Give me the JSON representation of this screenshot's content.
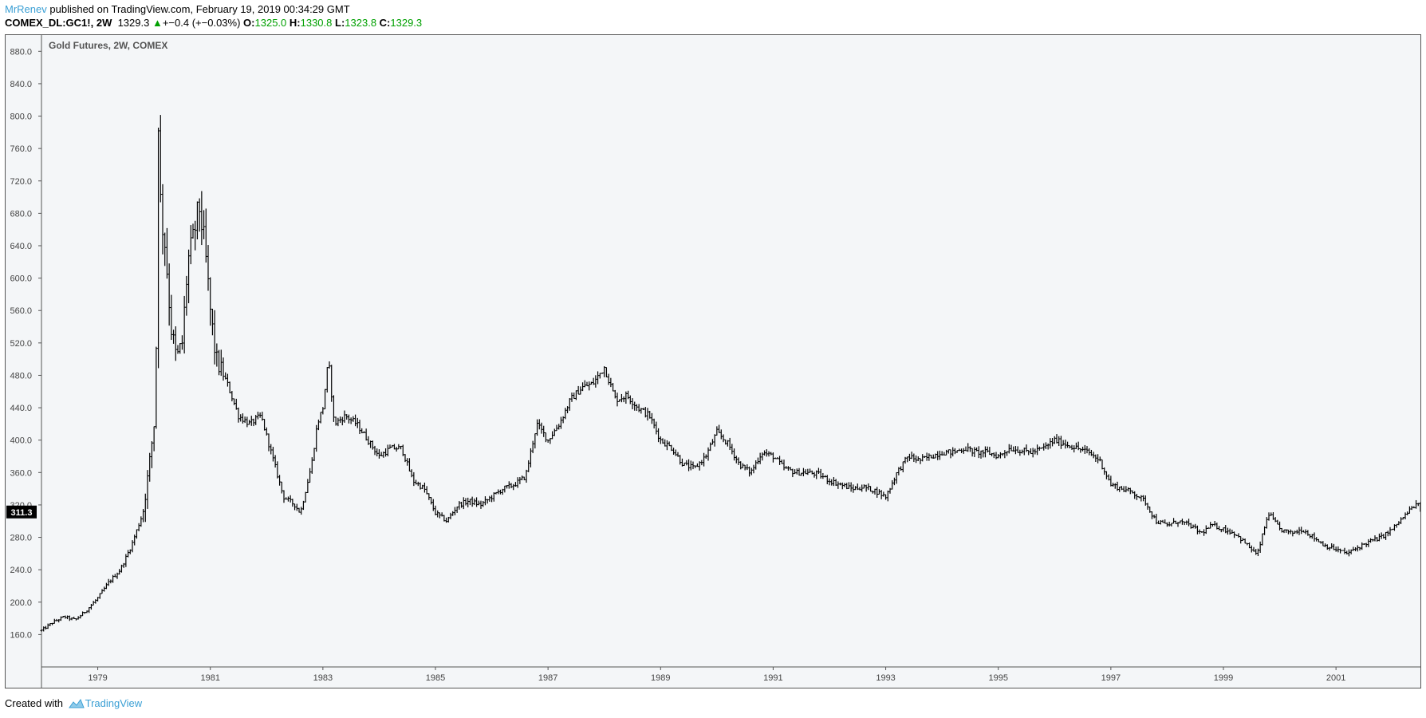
{
  "header": {
    "author": "MrRenev",
    "published_text": "published on TradingView.com, February 19, 2019 00:34:29 GMT",
    "symbol": "COMEX_DL:GC1!, 2W",
    "last": "1329.3",
    "change": "+−0.4 (+−0.03%)",
    "open_label": "O:",
    "open": "1325.0",
    "high_label": "H:",
    "high": "1330.8",
    "low_label": "L:",
    "low": "1323.8",
    "close_label": "C:",
    "close": "1329.3"
  },
  "footer": {
    "created_with": "Created with",
    "brand": "TradingView"
  },
  "colors": {
    "up": "#00a000",
    "accent": "#3a9fd4",
    "bars": "#000000",
    "background": "#f4f6f8"
  },
  "chart_data": {
    "type": "ohlc-bar",
    "title": "Gold Futures, 2W, COMEX",
    "price_label": "311.3",
    "ylim": [
      120,
      900
    ],
    "xlim": [
      1978.0,
      2002.5
    ],
    "y_ticks": [
      "160.0",
      "200.0",
      "240.0",
      "280.0",
      "320.0",
      "360.0",
      "400.0",
      "440.0",
      "480.0",
      "520.0",
      "560.0",
      "600.0",
      "640.0",
      "680.0",
      "720.0",
      "760.0",
      "800.0",
      "840.0",
      "880.0"
    ],
    "x_ticks": [
      "1979",
      "1981",
      "1983",
      "1985",
      "1987",
      "1989",
      "1991",
      "1993",
      "1995",
      "1997",
      "1999",
      "2001"
    ],
    "close_path": [
      [
        1978.0,
        165
      ],
      [
        1978.2,
        175
      ],
      [
        1978.4,
        182
      ],
      [
        1978.6,
        178
      ],
      [
        1978.8,
        190
      ],
      [
        1979.0,
        205
      ],
      [
        1979.2,
        225
      ],
      [
        1979.4,
        240
      ],
      [
        1979.6,
        270
      ],
      [
        1979.8,
        310
      ],
      [
        1979.9,
        360
      ],
      [
        1980.0,
        420
      ],
      [
        1980.04,
        520
      ],
      [
        1980.08,
        820
      ],
      [
        1980.12,
        680
      ],
      [
        1980.2,
        640
      ],
      [
        1980.3,
        540
      ],
      [
        1980.4,
        500
      ],
      [
        1980.5,
        520
      ],
      [
        1980.6,
        620
      ],
      [
        1980.7,
        650
      ],
      [
        1980.8,
        690
      ],
      [
        1980.9,
        640
      ],
      [
        1981.0,
        560
      ],
      [
        1981.1,
        500
      ],
      [
        1981.3,
        470
      ],
      [
        1981.5,
        430
      ],
      [
        1981.7,
        420
      ],
      [
        1981.9,
        430
      ],
      [
        1982.1,
        380
      ],
      [
        1982.3,
        330
      ],
      [
        1982.5,
        320
      ],
      [
        1982.6,
        310
      ],
      [
        1982.8,
        370
      ],
      [
        1982.9,
        420
      ],
      [
        1983.0,
        440
      ],
      [
        1983.1,
        500
      ],
      [
        1983.2,
        420
      ],
      [
        1983.4,
        430
      ],
      [
        1983.6,
        420
      ],
      [
        1983.8,
        400
      ],
      [
        1984.0,
        380
      ],
      [
        1984.2,
        390
      ],
      [
        1984.4,
        390
      ],
      [
        1984.6,
        350
      ],
      [
        1984.8,
        340
      ],
      [
        1985.0,
        310
      ],
      [
        1985.2,
        300
      ],
      [
        1985.4,
        320
      ],
      [
        1985.6,
        325
      ],
      [
        1985.8,
        320
      ],
      [
        1986.0,
        330
      ],
      [
        1986.2,
        340
      ],
      [
        1986.4,
        345
      ],
      [
        1986.6,
        355
      ],
      [
        1986.8,
        420
      ],
      [
        1987.0,
        400
      ],
      [
        1987.2,
        420
      ],
      [
        1987.4,
        450
      ],
      [
        1987.6,
        465
      ],
      [
        1987.8,
        470
      ],
      [
        1988.0,
        490
      ],
      [
        1988.2,
        450
      ],
      [
        1988.4,
        455
      ],
      [
        1988.6,
        440
      ],
      [
        1988.8,
        430
      ],
      [
        1989.0,
        400
      ],
      [
        1989.2,
        390
      ],
      [
        1989.4,
        370
      ],
      [
        1989.6,
        365
      ],
      [
        1989.8,
        380
      ],
      [
        1990.0,
        410
      ],
      [
        1990.2,
        395
      ],
      [
        1990.4,
        370
      ],
      [
        1990.6,
        360
      ],
      [
        1990.8,
        385
      ],
      [
        1991.0,
        380
      ],
      [
        1991.2,
        365
      ],
      [
        1991.4,
        360
      ],
      [
        1991.6,
        360
      ],
      [
        1991.8,
        358
      ],
      [
        1992.0,
        350
      ],
      [
        1992.2,
        345
      ],
      [
        1992.4,
        340
      ],
      [
        1992.6,
        342
      ],
      [
        1992.8,
        338
      ],
      [
        1993.0,
        330
      ],
      [
        1993.2,
        360
      ],
      [
        1993.4,
        380
      ],
      [
        1993.6,
        375
      ],
      [
        1993.8,
        380
      ],
      [
        1994.0,
        385
      ],
      [
        1994.2,
        385
      ],
      [
        1994.4,
        390
      ],
      [
        1994.6,
        385
      ],
      [
        1994.8,
        385
      ],
      [
        1995.0,
        380
      ],
      [
        1995.2,
        390
      ],
      [
        1995.4,
        387
      ],
      [
        1995.6,
        385
      ],
      [
        1995.8,
        390
      ],
      [
        1996.0,
        400
      ],
      [
        1996.2,
        395
      ],
      [
        1996.4,
        390
      ],
      [
        1996.6,
        385
      ],
      [
        1996.8,
        375
      ],
      [
        1997.0,
        345
      ],
      [
        1997.2,
        340
      ],
      [
        1997.4,
        335
      ],
      [
        1997.6,
        325
      ],
      [
        1997.8,
        300
      ],
      [
        1998.0,
        295
      ],
      [
        1998.2,
        300
      ],
      [
        1998.4,
        295
      ],
      [
        1998.6,
        285
      ],
      [
        1998.8,
        295
      ],
      [
        1999.0,
        290
      ],
      [
        1999.2,
        285
      ],
      [
        1999.4,
        272
      ],
      [
        1999.6,
        258
      ],
      [
        1999.8,
        310
      ],
      [
        2000.0,
        290
      ],
      [
        2000.2,
        285
      ],
      [
        2000.4,
        290
      ],
      [
        2000.6,
        280
      ],
      [
        2000.8,
        270
      ],
      [
        2001.0,
        265
      ],
      [
        2001.2,
        260
      ],
      [
        2001.4,
        268
      ],
      [
        2001.6,
        275
      ],
      [
        2001.8,
        280
      ],
      [
        2002.0,
        290
      ],
      [
        2002.2,
        305
      ],
      [
        2002.4,
        320
      ],
      [
        2002.5,
        318
      ]
    ]
  }
}
